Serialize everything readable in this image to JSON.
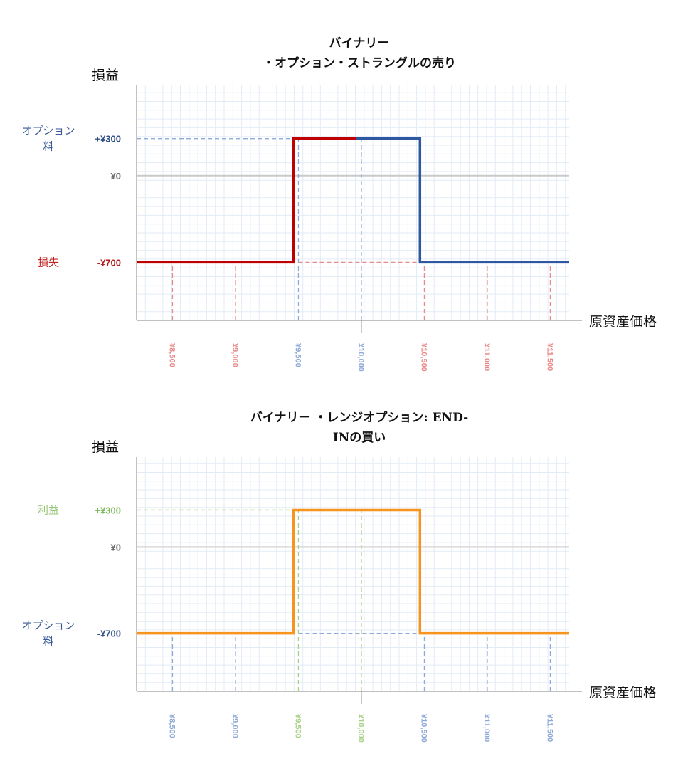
{
  "chart_data": [
    {
      "type": "line",
      "title": "バイナリー",
      "subtitle": "・オプション・ストラングルの売り",
      "ylabel": "損益",
      "xlabel": "原資産価格",
      "x_ticks": [
        {
          "value": 8500,
          "label": "¥8,500",
          "color": "#e98a8a"
        },
        {
          "value": 9000,
          "label": "¥9,000",
          "color": "#e98a8a"
        },
        {
          "value": 9500,
          "label": "¥9,500",
          "color": "#8ea8d8"
        },
        {
          "value": 10000,
          "label": "¥10,000",
          "color": "#8ea8d8"
        },
        {
          "value": 10500,
          "label": "¥10,500",
          "color": "#e98a8a"
        },
        {
          "value": 11000,
          "label": "¥11,000",
          "color": "#e98a8a"
        },
        {
          "value": 11500,
          "label": "¥11,500",
          "color": "#e98a8a"
        }
      ],
      "y_ticks": [
        {
          "value": 300,
          "label": "+¥300",
          "color": "#2f4f86"
        },
        {
          "value": 0,
          "label": "¥0",
          "color": "#6a6a6a"
        },
        {
          "value": -700,
          "label": "-¥700",
          "color": "#b51c1c"
        }
      ],
      "side_labels": [
        {
          "value": 300,
          "lines": [
            "オプション",
            "料"
          ],
          "color": "#3a5a9a"
        },
        {
          "value": -700,
          "lines": [
            "損失"
          ],
          "color": "#c0211f"
        }
      ],
      "xlim": [
        8215,
        11650
      ],
      "ylim": [
        -1170,
        730
      ],
      "grid": true,
      "series": [
        {
          "color": "#c00000",
          "x": [
            8215,
            9460,
            9460,
            9960
          ],
          "y": [
            -700,
            -700,
            300,
            300
          ]
        },
        {
          "color": "#2f56a0",
          "x": [
            9960,
            10465,
            10465,
            11650
          ],
          "y": [
            300,
            300,
            -700,
            -700
          ]
        }
      ],
      "guides": [
        {
          "type": "h",
          "value": 300,
          "from": 8215,
          "to": 9460,
          "color": "#8ea8d8"
        },
        {
          "type": "h",
          "value": -700,
          "from": 9500,
          "to": 10465,
          "color": "#e98a8a"
        },
        {
          "type": "v",
          "value": 8500,
          "from": -1170,
          "to": -700,
          "color": "#e98a8a"
        },
        {
          "type": "v",
          "value": 9000,
          "from": -1170,
          "to": -700,
          "color": "#e98a8a"
        },
        {
          "type": "v",
          "value": 9500,
          "from": -1170,
          "to": 300,
          "color": "#8ea8d8"
        },
        {
          "type": "v",
          "value": 10000,
          "from": -1170,
          "to": 300,
          "color": "#8ea8d8"
        },
        {
          "type": "v",
          "value": 10500,
          "from": -1170,
          "to": -700,
          "color": "#e98a8a"
        },
        {
          "type": "v",
          "value": 11000,
          "from": -1170,
          "to": -700,
          "color": "#e98a8a"
        },
        {
          "type": "v",
          "value": 11500,
          "from": -1170,
          "to": -700,
          "color": "#e98a8a"
        }
      ]
    },
    {
      "type": "line",
      "title": "バイナリー ・レンジオプション: END-",
      "subtitle": "INの買い",
      "ylabel": "損益",
      "xlabel": "原資産価格",
      "x_ticks": [
        {
          "value": 8500,
          "label": "¥8,500",
          "color": "#8ea8d8"
        },
        {
          "value": 9000,
          "label": "¥9,000",
          "color": "#8ea8d8"
        },
        {
          "value": 9500,
          "label": "¥9,500",
          "color": "#a7cf85"
        },
        {
          "value": 10000,
          "label": "¥10,000",
          "color": "#a7cf85"
        },
        {
          "value": 10500,
          "label": "¥10,500",
          "color": "#8ea8d8"
        },
        {
          "value": 11000,
          "label": "¥11,000",
          "color": "#8ea8d8"
        },
        {
          "value": 11500,
          "label": "¥11,500",
          "color": "#8ea8d8"
        }
      ],
      "y_ticks": [
        {
          "value": 300,
          "label": "+¥300",
          "color": "#7cb85a"
        },
        {
          "value": 0,
          "label": "¥0",
          "color": "#6a6a6a"
        },
        {
          "value": -700,
          "label": "-¥700",
          "color": "#2f4f86"
        }
      ],
      "side_labels": [
        {
          "value": 300,
          "lines": [
            "利益"
          ],
          "color": "#96c879"
        },
        {
          "value": -700,
          "lines": [
            "オプション",
            "料"
          ],
          "color": "#3a5a9a"
        }
      ],
      "xlim": [
        8215,
        11650
      ],
      "ylim": [
        -1170,
        730
      ],
      "grid": true,
      "series": [
        {
          "color": "#f7941d",
          "x": [
            8215,
            9460,
            9460,
            10465,
            10465,
            11650
          ],
          "y": [
            -700,
            -700,
            300,
            300,
            -700,
            -700
          ]
        }
      ],
      "guides": [
        {
          "type": "h",
          "value": 300,
          "from": 8215,
          "to": 9460,
          "color": "#a7cf85"
        },
        {
          "type": "h",
          "value": -700,
          "from": 9500,
          "to": 10465,
          "color": "#8ea8d8"
        },
        {
          "type": "v",
          "value": 8500,
          "from": -1170,
          "to": -700,
          "color": "#8ea8d8"
        },
        {
          "type": "v",
          "value": 9000,
          "from": -1170,
          "to": -700,
          "color": "#8ea8d8"
        },
        {
          "type": "v",
          "value": 9500,
          "from": -1170,
          "to": 300,
          "color": "#a7cf85"
        },
        {
          "type": "v",
          "value": 10000,
          "from": -1170,
          "to": 300,
          "color": "#a7cf85"
        },
        {
          "type": "v",
          "value": 10500,
          "from": -1170,
          "to": -700,
          "color": "#8ea8d8"
        },
        {
          "type": "v",
          "value": 11000,
          "from": -1170,
          "to": -700,
          "color": "#8ea8d8"
        },
        {
          "type": "v",
          "value": 11500,
          "from": -1170,
          "to": -700,
          "color": "#8ea8d8"
        }
      ]
    }
  ]
}
